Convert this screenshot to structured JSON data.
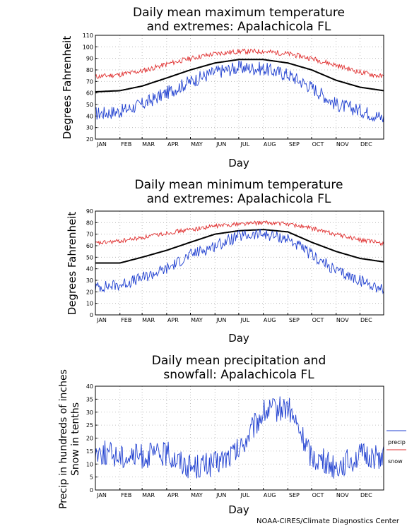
{
  "footer": "NOAA-CIRES/Climate Diagnostics Center",
  "colors": {
    "max_extreme": "#e03030",
    "mean": "#000000",
    "min_extreme": "#2040d0",
    "precip": "#2040d0",
    "snow": "#e03030",
    "grid": "#b0b0b0"
  },
  "chart_data": [
    {
      "type": "line",
      "title_line1": "Daily mean maximum temperature",
      "title_line2": "and extremes: Apalachicola FL",
      "xlabel": "Day",
      "ylabel": "Degrees Fahrenheit",
      "ylim": [
        20,
        110
      ],
      "yticks": [
        20,
        30,
        40,
        50,
        60,
        70,
        80,
        90,
        100,
        110
      ],
      "months": [
        "JAN",
        "FEB",
        "MAR",
        "APR",
        "MAY",
        "JUN",
        "JUL",
        "AUG",
        "SEP",
        "OCT",
        "NOV",
        "DEC"
      ],
      "grid": true,
      "x": [
        1,
        32,
        60,
        91,
        121,
        152,
        182,
        213,
        244,
        274,
        305,
        335,
        365
      ],
      "series": [
        {
          "key": "high",
          "values": [
            74,
            76,
            79,
            85,
            90,
            94,
            96,
            96,
            94,
            90,
            84,
            78,
            74
          ]
        },
        {
          "key": "mean",
          "values": [
            61,
            62,
            66,
            73,
            80,
            86,
            89,
            89,
            86,
            80,
            71,
            65,
            62
          ]
        },
        {
          "key": "low",
          "values": [
            42,
            44,
            50,
            60,
            70,
            78,
            82,
            81,
            76,
            65,
            50,
            45,
            38
          ]
        }
      ]
    },
    {
      "type": "line",
      "title_line1": "Daily mean minimum temperature",
      "title_line2": "and extremes: Apalachicola FL",
      "xlabel": "Day",
      "ylabel": "Degrees Fahrenheit",
      "ylim": [
        0,
        90
      ],
      "yticks": [
        0,
        10,
        20,
        30,
        40,
        50,
        60,
        70,
        80,
        90
      ],
      "months": [
        "JAN",
        "FEB",
        "MAR",
        "APR",
        "MAY",
        "JUN",
        "JUL",
        "AUG",
        "SEP",
        "OCT",
        "NOV",
        "DEC"
      ],
      "grid": true,
      "x": [
        1,
        32,
        60,
        91,
        121,
        152,
        182,
        213,
        244,
        274,
        305,
        335,
        365
      ],
      "series": [
        {
          "key": "high",
          "values": [
            62,
            64,
            67,
            71,
            74,
            77,
            79,
            80,
            79,
            75,
            70,
            65,
            62
          ]
        },
        {
          "key": "mean",
          "values": [
            45,
            45,
            50,
            56,
            63,
            70,
            73,
            74,
            72,
            63,
            55,
            49,
            46
          ]
        },
        {
          "key": "low",
          "values": [
            24,
            26,
            32,
            40,
            52,
            60,
            68,
            70,
            66,
            52,
            38,
            30,
            22
          ]
        }
      ]
    },
    {
      "type": "line",
      "title_line1": "Daily mean precipitation and",
      "title_line2": "snowfall: Apalachicola FL",
      "xlabel": "Day",
      "ylabel_line1": "Precip in hundreds of inches",
      "ylabel_line2": "Snow in tenths",
      "ylim": [
        0,
        40
      ],
      "yticks": [
        0,
        5,
        10,
        15,
        20,
        25,
        30,
        35,
        40
      ],
      "months": [
        "JAN",
        "FEB",
        "MAR",
        "APR",
        "MAY",
        "JUN",
        "JUL",
        "AUG",
        "SEP",
        "OCT",
        "NOV",
        "DEC"
      ],
      "grid": true,
      "legend": [
        "precip",
        "snow"
      ],
      "x": [
        1,
        32,
        60,
        91,
        121,
        152,
        182,
        213,
        244,
        274,
        305,
        335,
        365
      ],
      "series": [
        {
          "name": "precip",
          "values": [
            15,
            13,
            13,
            14,
            9,
            10,
            15,
            30,
            32,
            13,
            9,
            13,
            13
          ]
        },
        {
          "name": "snow",
          "values": [
            0,
            0,
            0,
            0,
            0,
            0,
            0,
            0,
            0,
            0,
            0,
            0,
            0
          ]
        }
      ]
    }
  ]
}
